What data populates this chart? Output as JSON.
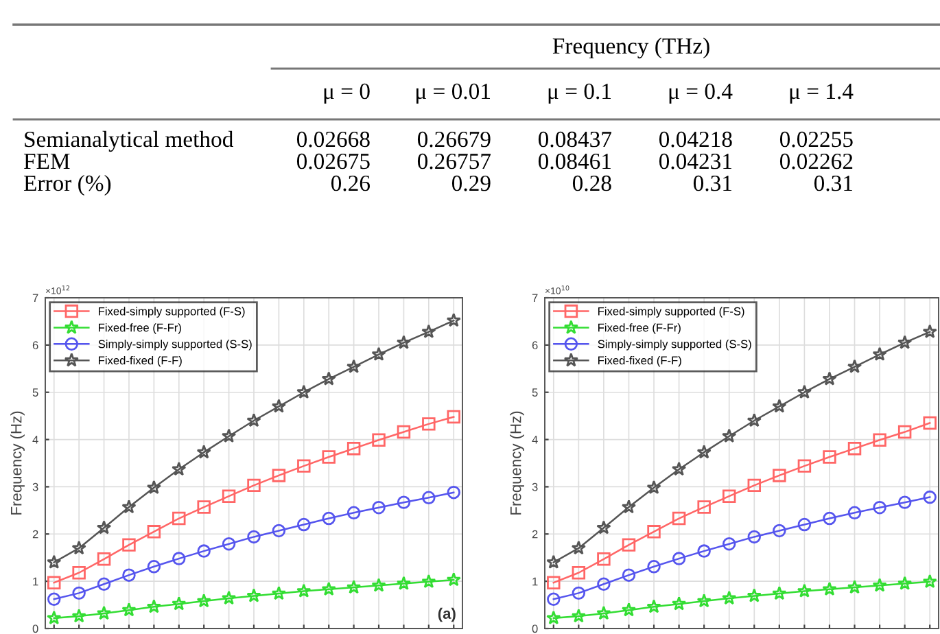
{
  "chart_data": [
    {
      "type": "heatmap",
      "title": "Frequency (THz)",
      "categories": [
        "μ = 0",
        "μ = 0.01",
        "μ = 0.1",
        "μ = 0.4",
        "μ = 1.4"
      ],
      "y_categories": [
        "Semianalytical method",
        "FEM",
        "Error (%)"
      ],
      "cells": [
        [
          0.02668,
          0.26679,
          0.08437,
          0.04218,
          0.02255
        ],
        [
          0.02675,
          0.26757,
          0.08461,
          0.04231,
          0.02262
        ],
        [
          0.26,
          0.29,
          0.28,
          0.31,
          0.31
        ]
      ],
      "data_labels": true
    },
    {
      "type": "line",
      "ylabel": "Frequency (Hz)",
      "annotations": [
        "×10$^{12}$",
        "(a)"
      ],
      "categories": [
        null,
        null,
        null,
        null,
        null,
        null,
        null,
        null,
        null,
        null,
        null,
        null,
        null,
        null,
        null,
        null,
        null
      ],
      "ylim": [
        0,
        7
      ],
      "yticks": [
        0,
        1,
        2,
        3,
        4,
        5,
        6,
        7
      ],
      "grid": true,
      "legend": "top left",
      "tick_labels": "y",
      "series": [
        {
          "name": "Fixed-simply supported (F-S)",
          "color": "#ff6666",
          "marker": "square",
          "values": [
            0.97,
            1.18,
            1.47,
            1.77,
            2.05,
            2.33,
            2.57,
            2.8,
            3.03,
            3.24,
            3.44,
            3.63,
            3.81,
            3.99,
            4.16,
            4.33,
            4.48
          ]
        },
        {
          "name": "Fixed-free (F-Fr)",
          "color": "#33dd33",
          "marker": "star",
          "values": [
            0.22,
            0.26,
            0.32,
            0.39,
            0.46,
            0.52,
            0.58,
            0.64,
            0.69,
            0.74,
            0.79,
            0.83,
            0.87,
            0.91,
            0.95,
            0.99,
            1.03
          ]
        },
        {
          "name": "Simply-simply supported (S-S)",
          "color": "#5555ee",
          "marker": "circle",
          "values": [
            0.62,
            0.75,
            0.94,
            1.13,
            1.31,
            1.48,
            1.64,
            1.79,
            1.94,
            2.07,
            2.2,
            2.33,
            2.45,
            2.56,
            2.67,
            2.77,
            2.88
          ]
        },
        {
          "name": "Fixed-fixed (F-F)",
          "color": "#555555",
          "marker": "star",
          "values": [
            1.4,
            1.7,
            2.13,
            2.57,
            2.98,
            3.37,
            3.73,
            4.07,
            4.4,
            4.7,
            5.0,
            5.28,
            5.54,
            5.8,
            6.05,
            6.28,
            6.52
          ]
        }
      ]
    },
    {
      "type": "line",
      "ylabel": "Frequency (Hz)",
      "annotations": [
        "×10$^{10}$"
      ],
      "categories": [
        null,
        null,
        null,
        null,
        null,
        null,
        null,
        null,
        null,
        null,
        null,
        null,
        null,
        null,
        null,
        null
      ],
      "ylim": [
        0,
        7
      ],
      "yticks": [
        0,
        1,
        2,
        3,
        4,
        5,
        6,
        7
      ],
      "grid": true,
      "legend": "top left",
      "tick_labels": "y",
      "series": [
        {
          "name": "Fixed-simply supported (F-S)",
          "color": "#ff6666",
          "marker": "square",
          "values": [
            0.97,
            1.18,
            1.47,
            1.77,
            2.05,
            2.33,
            2.57,
            2.8,
            3.03,
            3.24,
            3.44,
            3.63,
            3.81,
            3.99,
            4.16,
            4.35
          ]
        },
        {
          "name": "Fixed-free (F-Fr)",
          "color": "#33dd33",
          "marker": "star",
          "values": [
            0.22,
            0.26,
            0.32,
            0.39,
            0.46,
            0.52,
            0.58,
            0.64,
            0.69,
            0.74,
            0.79,
            0.83,
            0.87,
            0.91,
            0.95,
            0.99
          ]
        },
        {
          "name": "Simply-simply supported (S-S)",
          "color": "#5555ee",
          "marker": "circle",
          "values": [
            0.62,
            0.75,
            0.94,
            1.13,
            1.31,
            1.48,
            1.64,
            1.79,
            1.94,
            2.07,
            2.2,
            2.33,
            2.45,
            2.56,
            2.67,
            2.78
          ]
        },
        {
          "name": "Fixed-fixed (F-F)",
          "color": "#555555",
          "marker": "star",
          "values": [
            1.4,
            1.7,
            2.13,
            2.57,
            2.98,
            3.37,
            3.73,
            4.07,
            4.4,
            4.7,
            5.0,
            5.28,
            5.54,
            5.8,
            6.05,
            6.28
          ]
        }
      ]
    }
  ]
}
